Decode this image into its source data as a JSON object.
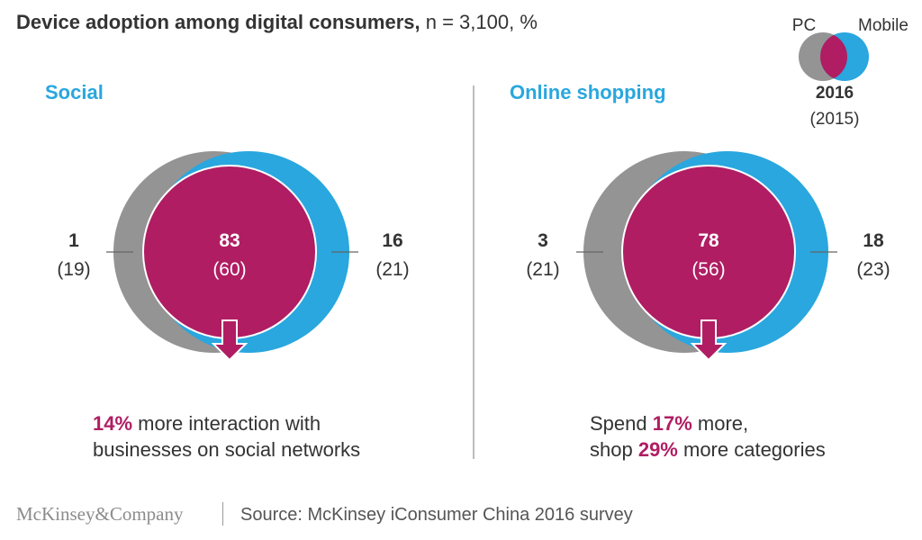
{
  "title": {
    "bold": "Device adoption among digital consumers,",
    "rest": " n = 3,100, %"
  },
  "legend": {
    "pc_label": "PC",
    "mobile_label": "Mobile",
    "year_current": "2016",
    "year_previous": "(2015)"
  },
  "colors": {
    "pc": "#949494",
    "mobile": "#29a7de",
    "both": "#b01d62",
    "title_accent": "#29a7de",
    "highlight": "#b01d62",
    "text": "#333333"
  },
  "chart_data": [
    {
      "type": "venn",
      "title": "Social",
      "sets": [
        "PC",
        "Mobile"
      ],
      "values_2016": {
        "pc_only": 1,
        "both": 83,
        "mobile_only": 16
      },
      "values_2015": {
        "pc_only": 19,
        "both": 60,
        "mobile_only": 21
      },
      "labels": {
        "pc_only": "1",
        "pc_only_prev": "(19)",
        "both": "83",
        "both_prev": "(60)",
        "mobile_only": "16",
        "mobile_only_prev": "(21)"
      },
      "caption": [
        [
          {
            "text": "14%",
            "highlight": true
          },
          {
            "text": " more interaction with",
            "highlight": false
          }
        ],
        [
          {
            "text": "businesses on social networks",
            "highlight": false
          }
        ]
      ]
    },
    {
      "type": "venn",
      "title": "Online shopping",
      "sets": [
        "PC",
        "Mobile"
      ],
      "values_2016": {
        "pc_only": 3,
        "both": 78,
        "mobile_only": 18
      },
      "values_2015": {
        "pc_only": 21,
        "both": 56,
        "mobile_only": 23
      },
      "labels": {
        "pc_only": "3",
        "pc_only_prev": "(21)",
        "both": "78",
        "both_prev": "(56)",
        "mobile_only": "18",
        "mobile_only_prev": "(23)"
      },
      "caption": [
        [
          {
            "text": "Spend ",
            "highlight": false
          },
          {
            "text": "17%",
            "highlight": true
          },
          {
            "text": " more,",
            "highlight": false
          }
        ],
        [
          {
            "text": "shop ",
            "highlight": false
          },
          {
            "text": "29%",
            "highlight": true
          },
          {
            "text": " more categories",
            "highlight": false
          }
        ]
      ]
    }
  ],
  "footer": {
    "brand": "McKinsey&Company",
    "source": "Source: McKinsey iConsumer China 2016 survey"
  }
}
